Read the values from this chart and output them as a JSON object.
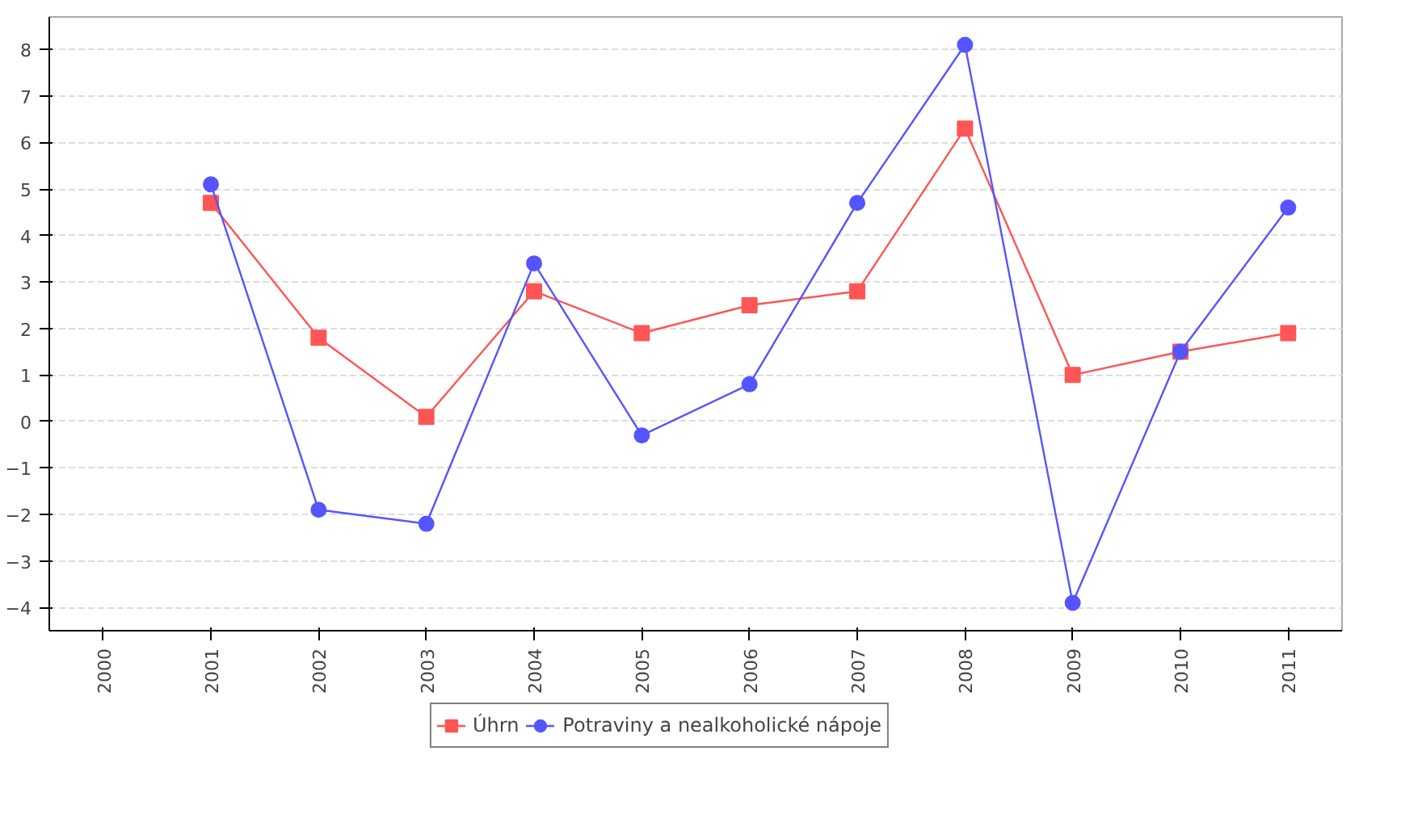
{
  "chart_data": {
    "type": "line",
    "categories": [
      "2000",
      "2001",
      "2002",
      "2003",
      "2004",
      "2005",
      "2006",
      "2007",
      "2008",
      "2009",
      "2010",
      "2011"
    ],
    "series": [
      {
        "name": "Úhrn",
        "color": "#ff5555",
        "marker": "square",
        "values": [
          null,
          4.7,
          1.8,
          0.1,
          2.8,
          1.9,
          2.5,
          2.8,
          6.3,
          1.0,
          1.5,
          1.9
        ]
      },
      {
        "name": "Potraviny a nealkoholické nápoje",
        "color": "#5555ff",
        "marker": "circle",
        "values": [
          null,
          5.1,
          -1.9,
          -2.2,
          3.4,
          -0.3,
          0.8,
          4.7,
          8.1,
          -3.9,
          1.5,
          4.6
        ]
      }
    ],
    "ylim": [
      -4.5,
      8.7
    ],
    "yticks": [
      -4,
      -3,
      -2,
      -1,
      0,
      1,
      2,
      3,
      4,
      5,
      6,
      7,
      8
    ],
    "grid": "y",
    "legend": "bottom",
    "line_style": "solid"
  }
}
